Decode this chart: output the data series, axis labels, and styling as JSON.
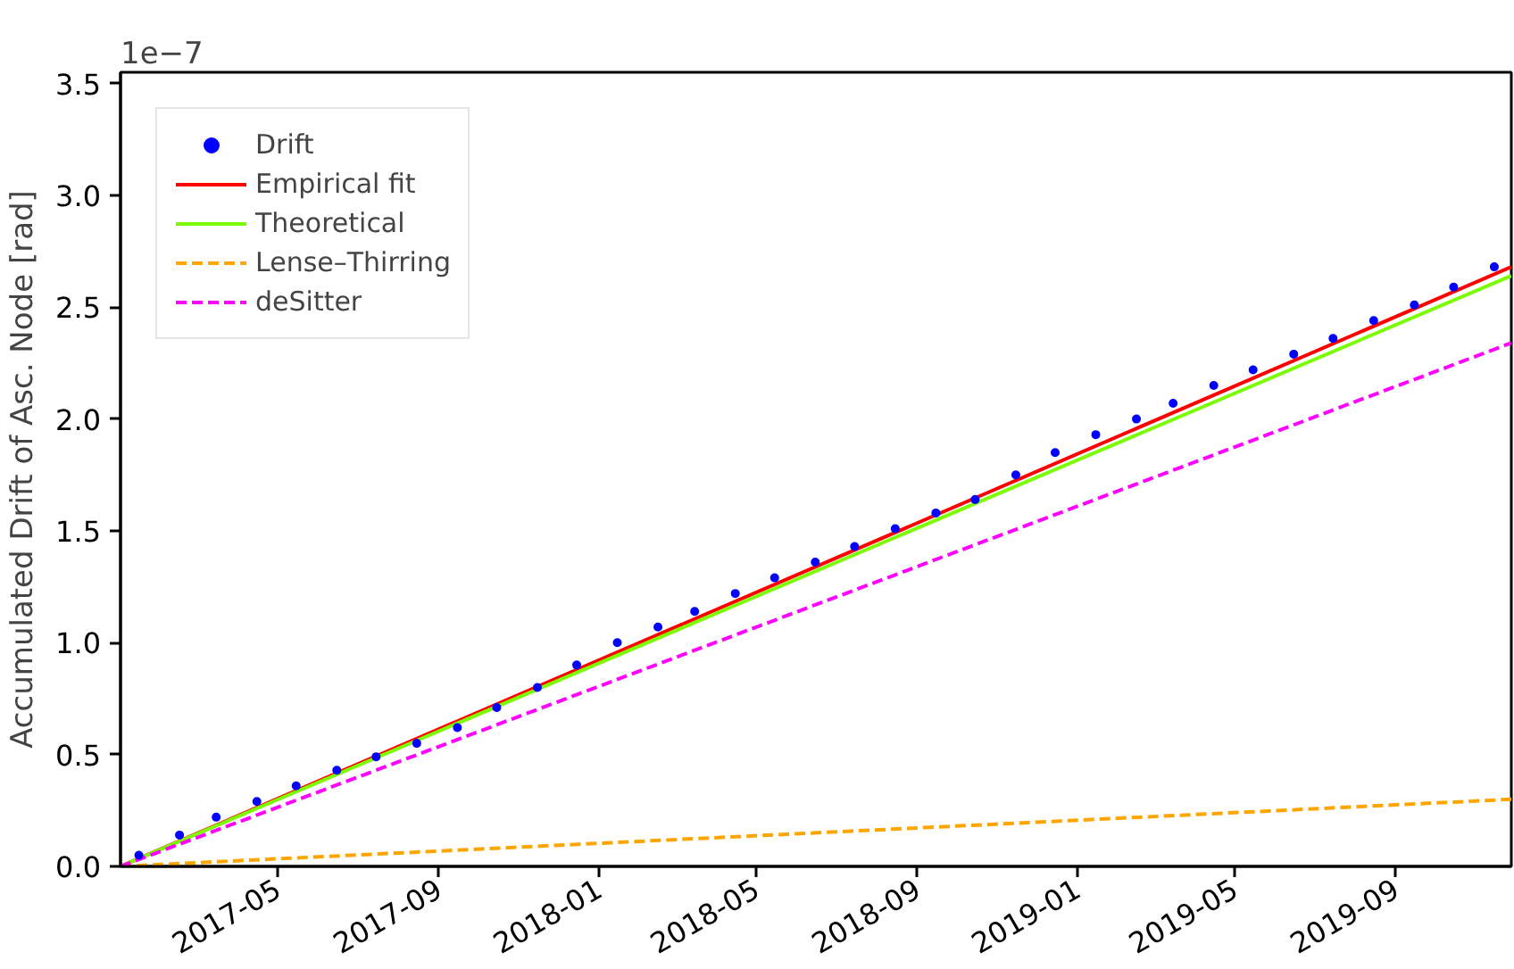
{
  "chart_data": {
    "type": "line",
    "ylabel": "Accumulated Drift of Asc. Node [rad]",
    "annotations": [
      "1e−7"
    ],
    "xlim": [
      "2017-01-01",
      "2019-11-28"
    ],
    "ylim": [
      0,
      3.55
    ],
    "xticks": [
      {
        "value": "2017-05-01",
        "label": "2017-05"
      },
      {
        "value": "2017-09-01",
        "label": "2017-09"
      },
      {
        "value": "2018-01-01",
        "label": "2018-01"
      },
      {
        "value": "2018-05-01",
        "label": "2018-05"
      },
      {
        "value": "2018-09-01",
        "label": "2018-09"
      },
      {
        "value": "2019-01-01",
        "label": "2019-01"
      },
      {
        "value": "2019-05-01",
        "label": "2019-05"
      },
      {
        "value": "2019-09-01",
        "label": "2019-09"
      }
    ],
    "yticks": [
      {
        "value": 0,
        "label": "0.0"
      },
      {
        "value": 0.5,
        "label": "0.5"
      },
      {
        "value": 1,
        "label": "1.0"
      },
      {
        "value": 1.5,
        "label": "1.5"
      },
      {
        "value": 2,
        "label": "2.0"
      },
      {
        "value": 2.5,
        "label": "2.5"
      },
      {
        "value": 3,
        "label": "3.0"
      },
      {
        "value": 3.5,
        "label": "3.5"
      }
    ],
    "grid": false,
    "legend": "top left",
    "series": [
      {
        "name": "Drift",
        "type": "scatter",
        "marker": "circle",
        "color": "#0000ff",
        "x": [
          "2017-01-15",
          "2017-02-15",
          "2017-03-15",
          "2017-04-15",
          "2017-05-15",
          "2017-06-15",
          "2017-07-15",
          "2017-08-15",
          "2017-09-15",
          "2017-10-15",
          "2017-11-15",
          "2017-12-15",
          "2018-01-15",
          "2018-02-15",
          "2018-03-15",
          "2018-04-15",
          "2018-05-15",
          "2018-06-15",
          "2018-07-15",
          "2018-08-15",
          "2018-09-15",
          "2018-10-15",
          "2018-11-15",
          "2018-12-15",
          "2019-01-15",
          "2019-02-15",
          "2019-03-15",
          "2019-04-15",
          "2019-05-15",
          "2019-06-15",
          "2019-07-15",
          "2019-08-15",
          "2019-09-15",
          "2019-10-15",
          "2019-11-15"
        ],
        "values": [
          0.05,
          0.14,
          0.22,
          0.29,
          0.36,
          0.43,
          0.49,
          0.55,
          0.62,
          0.71,
          0.8,
          0.9,
          1.0,
          1.07,
          1.14,
          1.22,
          1.29,
          1.36,
          1.43,
          1.51,
          1.58,
          1.64,
          1.75,
          1.85,
          1.93,
          2.0,
          2.07,
          2.15,
          2.22,
          2.29,
          2.36,
          2.44,
          2.51,
          2.59,
          2.68
        ]
      },
      {
        "name": "Empirical fit",
        "line_style": "solid",
        "color": "#ff0000",
        "x": [
          "2017-01-01",
          "2019-11-28"
        ],
        "values": [
          0,
          2.68
        ]
      },
      {
        "name": "Theoretical",
        "line_style": "solid",
        "color": "#7cfc00",
        "x": [
          "2017-01-01",
          "2019-11-28"
        ],
        "values": [
          0,
          2.64
        ]
      },
      {
        "name": "Lense–Thirring",
        "line_style": "dashed",
        "color": "#ffa500",
        "x": [
          "2017-01-01",
          "2019-11-28"
        ],
        "values": [
          0,
          0.3
        ]
      },
      {
        "name": "deSitter",
        "line_style": "dashed",
        "color": "#ff00ff",
        "x": [
          "2017-01-01",
          "2019-11-28"
        ],
        "values": [
          0,
          2.34
        ]
      }
    ]
  }
}
